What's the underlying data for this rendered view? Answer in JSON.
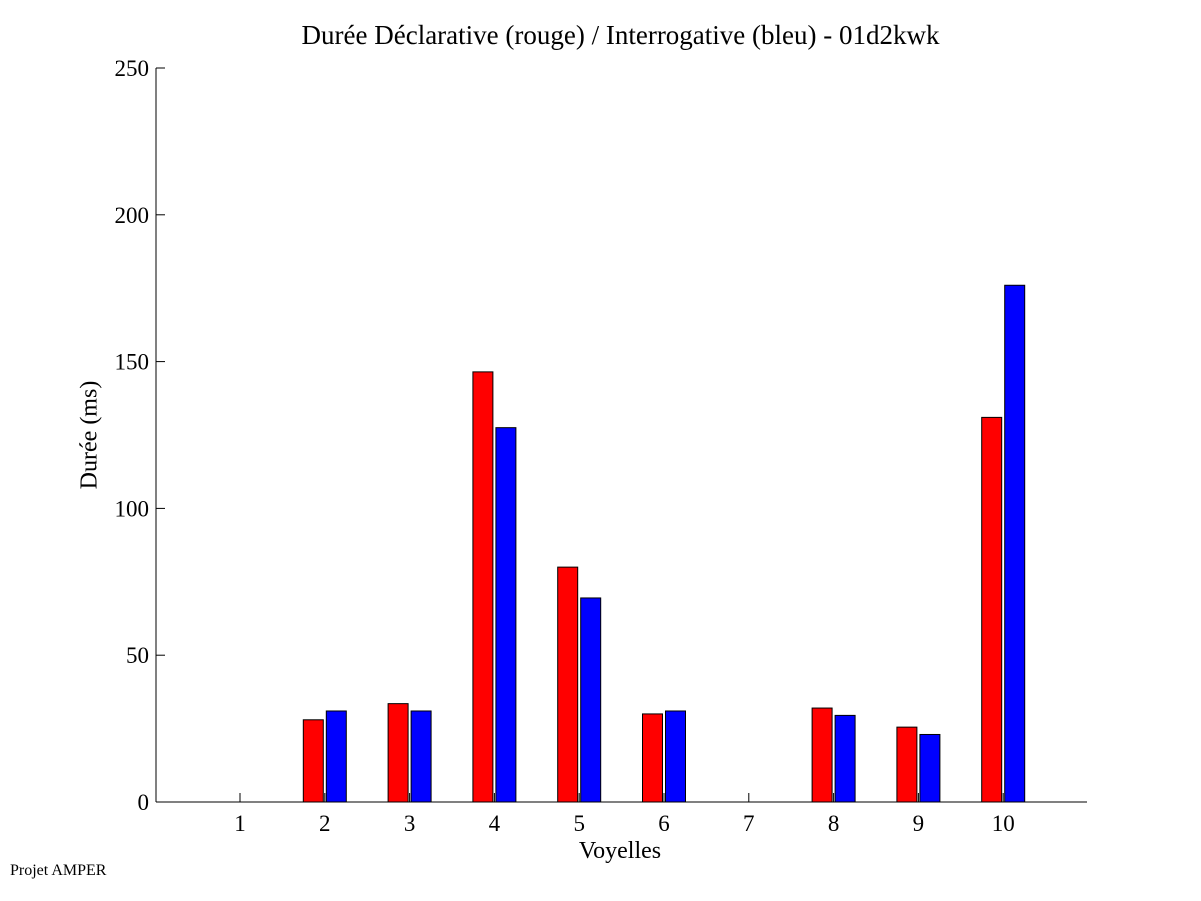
{
  "chart_data": {
    "type": "bar",
    "title": "Durée Déclarative (rouge) / Interrogative (bleu) - 01d2kwk",
    "xlabel": "Voyelles",
    "ylabel": "Durée (ms)",
    "categories": [
      "1",
      "2",
      "3",
      "4",
      "5",
      "6",
      "7",
      "8",
      "9",
      "10"
    ],
    "ylim": [
      0,
      250
    ],
    "yticks": [
      0,
      50,
      100,
      150,
      200,
      250
    ],
    "series": [
      {
        "color": "#ff0000",
        "values": [
          0,
          28,
          33.5,
          146.5,
          80,
          30,
          0,
          32,
          25.5,
          131
        ]
      },
      {
        "color": "#0000ff",
        "values": [
          0,
          31,
          31,
          127.5,
          69.5,
          31,
          0,
          29.5,
          23,
          176
        ]
      }
    ],
    "grid": false,
    "legend": "none"
  },
  "footer": {
    "credit": "Projet AMPER"
  }
}
